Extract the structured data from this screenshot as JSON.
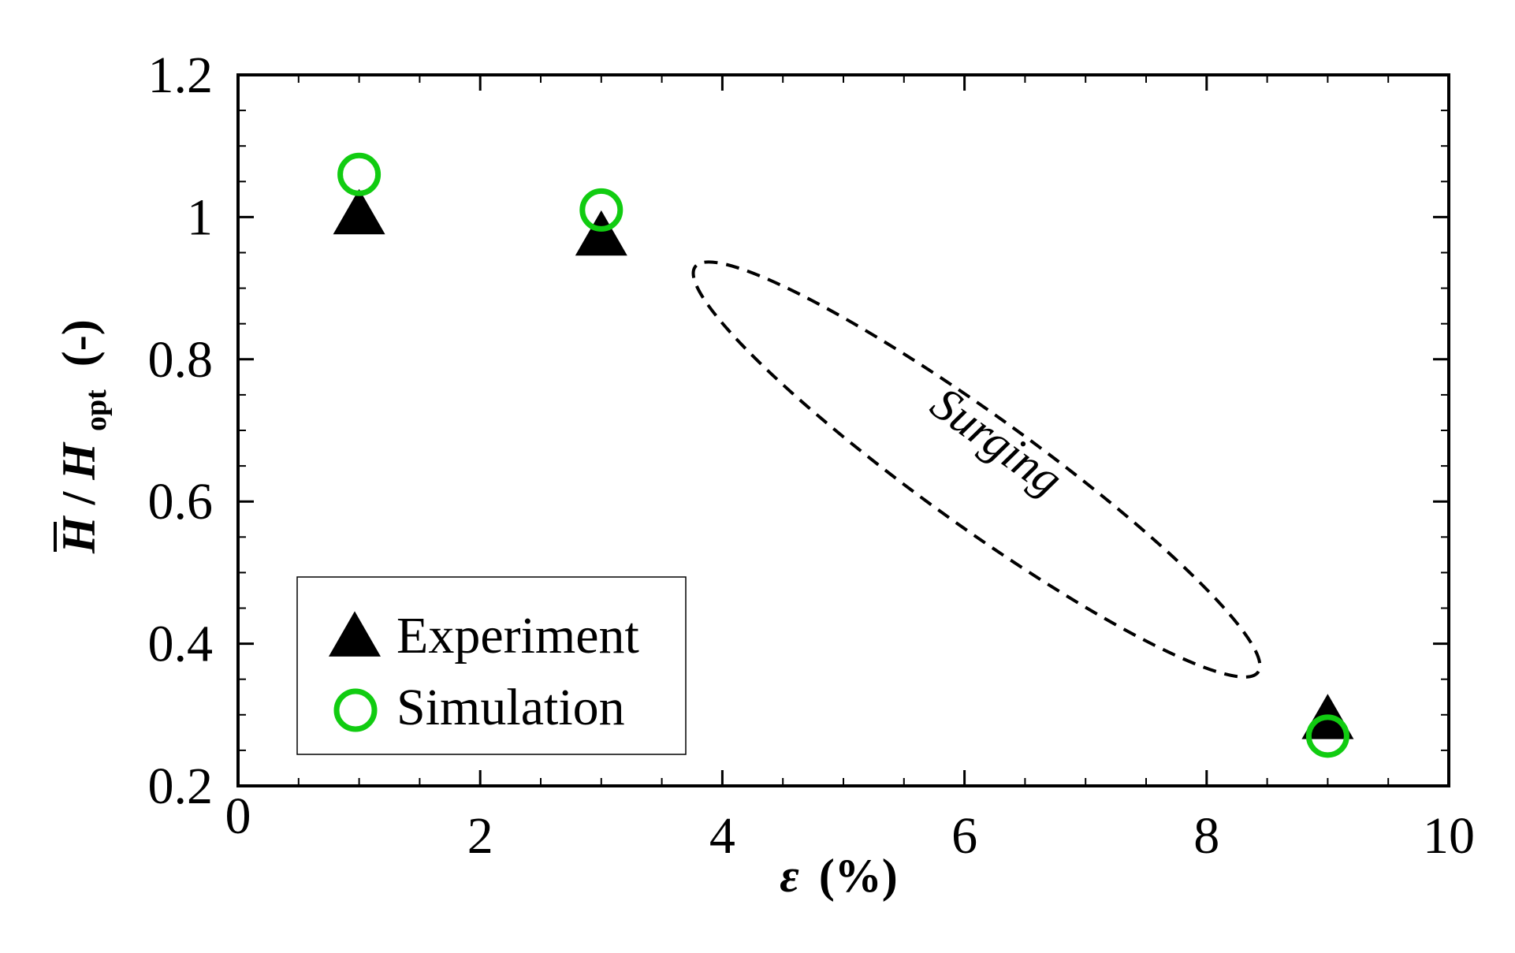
{
  "chart_data": {
    "type": "scatter",
    "x": [
      1,
      3,
      9
    ],
    "series": [
      {
        "name": "Experiment",
        "marker": "filled-triangle",
        "color": "#000000",
        "values": [
          1.0,
          0.97,
          0.29
        ]
      },
      {
        "name": "Simulation",
        "marker": "open-circle",
        "color": "#11cc11",
        "values": [
          1.06,
          1.01,
          0.27
        ]
      }
    ],
    "xlabel_symbol": "ε",
    "xlabel_unit": "(%)",
    "ylabel_main": "H",
    "ylabel_sep": "/",
    "ylabel_den": "H",
    "ylabel_sub": "opt",
    "ylabel_unit": "(-)",
    "xlim": [
      0,
      10
    ],
    "ylim": [
      0.2,
      1.2
    ],
    "xticks": [
      0,
      2,
      4,
      6,
      8,
      10
    ],
    "xtick_labels": [
      "0",
      "2",
      "4",
      "6",
      "8",
      "10"
    ],
    "yticks": [
      0.2,
      0.4,
      0.6,
      0.8,
      1.0,
      1.2
    ],
    "ytick_labels": [
      "0.2",
      "0.4",
      "0.6",
      "0.8",
      "1",
      "1.2"
    ],
    "grid": false,
    "legend_position": "bottom-left",
    "annotation": {
      "text": "Surging",
      "style": "dashed-ellipse",
      "center_x": 6.1,
      "center_y": 0.645,
      "from_x": 3.8,
      "from_y": 0.93,
      "to_x": 8.45,
      "to_y": 0.36
    }
  }
}
